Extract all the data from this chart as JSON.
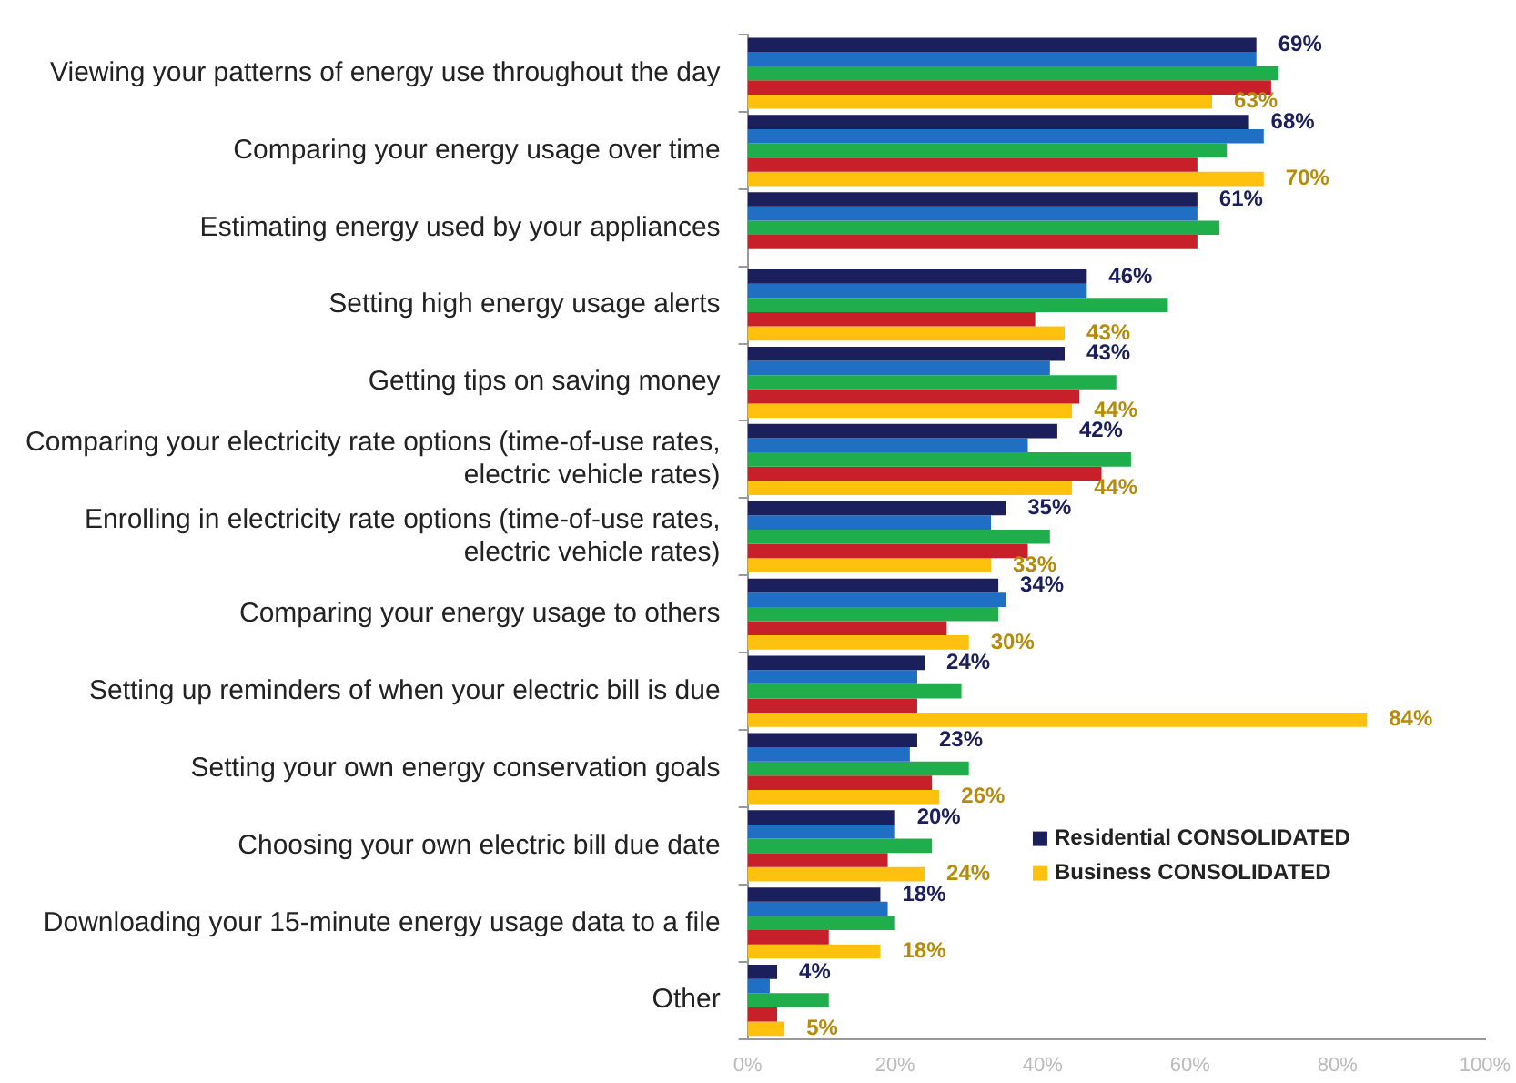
{
  "chart_data": {
    "type": "bar",
    "orientation": "horizontal",
    "categories": [
      "Viewing your patterns of energy use throughout the day",
      "Comparing your energy usage over time",
      "Estimating energy used by your appliances",
      "Setting high energy usage alerts",
      "Getting tips on saving money",
      "Comparing your electricity rate options (time-of-use rates, electric vehicle rates)",
      "Enrolling in electricity rate options (time-of-use rates, electric vehicle rates)",
      "Comparing your energy usage to others",
      "Setting up reminders of when your electric bill is due",
      "Setting your own energy conservation goals",
      "Choosing your own electric bill due date",
      "Downloading your 15-minute energy usage data to a file",
      "Other"
    ],
    "series": [
      {
        "name": "Residential CONSOLIDATED",
        "color": "#1b1f5c",
        "values": [
          69,
          68,
          61,
          46,
          43,
          42,
          35,
          34,
          24,
          23,
          20,
          18,
          4
        ],
        "value_labels": [
          "69%",
          "68%",
          "61%",
          "46%",
          "43%",
          "42%",
          "35%",
          "34%",
          "24%",
          "23%",
          "20%",
          "18%",
          "4%"
        ]
      },
      {
        "color": "#1f6fc4",
        "values": [
          69,
          70,
          61,
          46,
          41,
          38,
          33,
          35,
          23,
          22,
          20,
          19,
          3
        ]
      },
      {
        "color": "#1fae4b",
        "values": [
          72,
          65,
          64,
          57,
          50,
          52,
          41,
          34,
          29,
          30,
          25,
          20,
          11
        ]
      },
      {
        "color": "#c8202a",
        "values": [
          71,
          61,
          61,
          39,
          45,
          48,
          38,
          27,
          23,
          25,
          19,
          11,
          4
        ]
      },
      {
        "name": "Business CONSOLIDATED",
        "color": "#fdc10e",
        "values": [
          63,
          70,
          null,
          43,
          44,
          44,
          33,
          30,
          84,
          26,
          24,
          18,
          5
        ],
        "value_labels": [
          "63%",
          "70%",
          null,
          "43%",
          "44%",
          "44%",
          "33%",
          "30%",
          "84%",
          "26%",
          "24%",
          "18%",
          "5%"
        ]
      }
    ],
    "xlim": [
      0,
      100
    ],
    "xticks": [
      {
        "value": 0,
        "label": "0%"
      },
      {
        "value": 20,
        "label": "20%"
      },
      {
        "value": 40,
        "label": "40%"
      },
      {
        "value": 60,
        "label": "60%"
      },
      {
        "value": 80,
        "label": "80%"
      },
      {
        "value": 100,
        "label": "100%"
      }
    ],
    "grid": false,
    "legend": "bottom right"
  }
}
